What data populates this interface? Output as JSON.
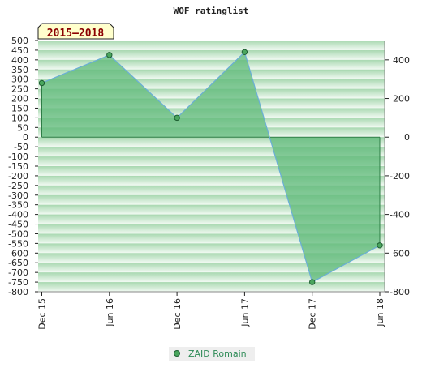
{
  "chart_data": {
    "type": "area",
    "title": "WOF ratinglist",
    "badge": "2015–2018",
    "categories": [
      "Dec 15",
      "Jun 16",
      "Dec 16",
      "Jun 17",
      "Dec 17",
      "Jun 18"
    ],
    "series": [
      {
        "name": "ZAID Romain",
        "values": [
          280,
          425,
          100,
          440,
          -750,
          -560
        ]
      }
    ],
    "left_axis": {
      "ylim": [
        -800,
        500
      ],
      "ticks": [
        500,
        450,
        400,
        350,
        300,
        250,
        200,
        150,
        100,
        50,
        0,
        -50,
        -100,
        -150,
        -200,
        -250,
        -300,
        -350,
        -400,
        -450,
        -500,
        -550,
        -600,
        -650,
        -700,
        -750,
        -800
      ]
    },
    "right_axis": {
      "ticks": [
        400,
        200,
        0,
        -200,
        -400,
        -600,
        -800
      ]
    },
    "grid": true,
    "legend": "bottom-center",
    "colors": {
      "area_fill": "#5fb97a",
      "line": "#6aaed6",
      "marker_fill": "#4aa65e",
      "marker_stroke": "#1e5e32",
      "badge_bg": "#ffffcc",
      "badge_text": "#8b0000",
      "band_dark": "#a8d8b0",
      "band_light": "#f2faf3"
    }
  }
}
